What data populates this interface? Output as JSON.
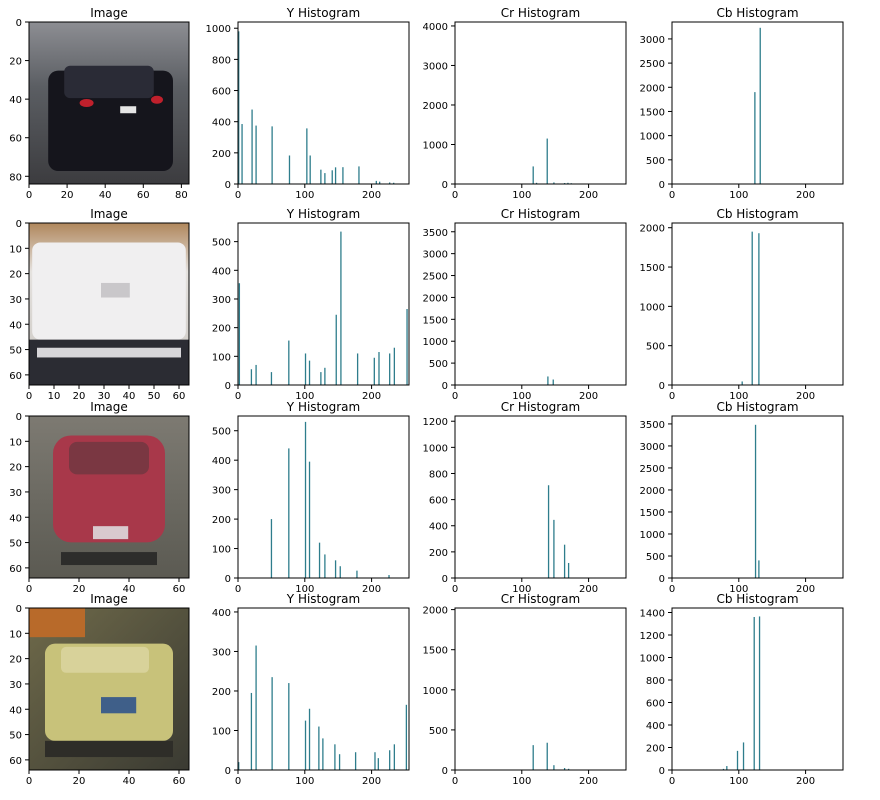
{
  "chart_data": [
    {
      "row": 0,
      "type": "image",
      "title": "Image",
      "xticks": [
        0,
        20,
        40,
        60,
        80
      ],
      "yticks": [
        0,
        20,
        40,
        60,
        80
      ],
      "ylim": [
        0,
        84
      ],
      "description": "dark car, rear view, on a road"
    },
    {
      "row": 0,
      "type": "bar",
      "title": "Y Histogram",
      "xlim": [
        0,
        256
      ],
      "xticks": [
        0,
        100,
        200
      ],
      "ylim": [
        0,
        1040
      ],
      "yticks": [
        0,
        200,
        400,
        600,
        800,
        1000
      ],
      "x": [
        1,
        6,
        21,
        27,
        51,
        77,
        103,
        108,
        124,
        130,
        141,
        146,
        157,
        181,
        207,
        212,
        227,
        233
      ],
      "values": [
        980,
        385,
        478,
        375,
        370,
        183,
        357,
        183,
        92,
        70,
        88,
        107,
        108,
        113,
        20,
        15,
        10,
        8
      ]
    },
    {
      "row": 0,
      "type": "bar",
      "title": "Cr Histogram",
      "xlim": [
        0,
        256
      ],
      "xticks": [
        0,
        100,
        200
      ],
      "ylim": [
        0,
        4100
      ],
      "yticks": [
        0,
        1000,
        2000,
        3000,
        4000
      ],
      "x": [
        117,
        122,
        138,
        148,
        164,
        169,
        174
      ],
      "values": [
        445,
        30,
        1150,
        40,
        25,
        30,
        20
      ]
    },
    {
      "row": 0,
      "type": "bar",
      "title": "Cb Histogram",
      "xlim": [
        0,
        256
      ],
      "xticks": [
        0,
        100,
        200
      ],
      "ylim": [
        0,
        3350
      ],
      "yticks": [
        0,
        500,
        1000,
        1500,
        2000,
        2500,
        3000
      ],
      "x": [
        124,
        132
      ],
      "values": [
        1900,
        3230
      ]
    },
    {
      "row": 1,
      "type": "image",
      "title": "Image",
      "xticks": [
        0,
        10,
        20,
        30,
        40,
        50,
        60
      ],
      "yticks": [
        0,
        10,
        20,
        30,
        40,
        50,
        60
      ],
      "ylim": [
        0,
        64
      ],
      "description": "white car, rear view"
    },
    {
      "row": 1,
      "type": "bar",
      "title": "Y Histogram",
      "xlim": [
        0,
        256
      ],
      "xticks": [
        0,
        100,
        200
      ],
      "ylim": [
        0,
        565
      ],
      "yticks": [
        0,
        100,
        200,
        300,
        400,
        500
      ],
      "x": [
        2,
        20,
        27,
        50,
        76,
        101,
        107,
        124,
        130,
        147,
        154,
        179,
        204,
        211,
        227,
        234,
        253
      ],
      "values": [
        355,
        55,
        70,
        45,
        155,
        110,
        85,
        45,
        60,
        245,
        535,
        110,
        95,
        115,
        110,
        130,
        265
      ]
    },
    {
      "row": 1,
      "type": "bar",
      "title": "Cr Histogram",
      "xlim": [
        0,
        256
      ],
      "xticks": [
        0,
        100,
        200
      ],
      "ylim": [
        0,
        3700
      ],
      "yticks": [
        0,
        500,
        1000,
        1500,
        2000,
        2500,
        3000,
        3500
      ],
      "x": [
        139,
        147
      ],
      "values": [
        195,
        125
      ]
    },
    {
      "row": 1,
      "type": "bar",
      "title": "Cb Histogram",
      "xlim": [
        0,
        256
      ],
      "xticks": [
        0,
        100,
        200
      ],
      "ylim": [
        0,
        2060
      ],
      "yticks": [
        0,
        500,
        1000,
        1500,
        2000
      ],
      "x": [
        105,
        120,
        130
      ],
      "values": [
        45,
        1950,
        1930
      ]
    },
    {
      "row": 2,
      "type": "image",
      "title": "Image",
      "xticks": [
        0,
        20,
        40,
        60
      ],
      "yticks": [
        0,
        10,
        20,
        30,
        40,
        50,
        60
      ],
      "ylim": [
        0,
        64
      ],
      "description": "blurred red car, rear view"
    },
    {
      "row": 2,
      "type": "bar",
      "title": "Y Histogram",
      "xlim": [
        0,
        256
      ],
      "xticks": [
        0,
        100,
        200
      ],
      "ylim": [
        0,
        550
      ],
      "yticks": [
        0,
        100,
        200,
        300,
        400,
        500
      ],
      "x": [
        50,
        76,
        101,
        107,
        122,
        130,
        146,
        153,
        178,
        226
      ],
      "values": [
        200,
        440,
        530,
        395,
        120,
        80,
        60,
        40,
        25,
        10
      ]
    },
    {
      "row": 2,
      "type": "bar",
      "title": "Cr Histogram",
      "xlim": [
        0,
        256
      ],
      "xticks": [
        0,
        100,
        200
      ],
      "ylim": [
        0,
        1240
      ],
      "yticks": [
        0,
        200,
        400,
        600,
        800,
        1000,
        1200
      ],
      "x": [
        140,
        148,
        164,
        170
      ],
      "values": [
        710,
        445,
        255,
        115
      ]
    },
    {
      "row": 2,
      "type": "bar",
      "title": "Cb Histogram",
      "xlim": [
        0,
        256
      ],
      "xticks": [
        0,
        100,
        200
      ],
      "ylim": [
        0,
        3680
      ],
      "yticks": [
        0,
        500,
        1000,
        1500,
        2000,
        2500,
        3000,
        3500
      ],
      "x": [
        125,
        130
      ],
      "values": [
        3480,
        400
      ]
    },
    {
      "row": 3,
      "type": "image",
      "title": "Image",
      "xticks": [
        0,
        20,
        40,
        60
      ],
      "yticks": [
        0,
        10,
        20,
        30,
        40,
        50,
        60
      ],
      "ylim": [
        0,
        64
      ],
      "description": "yellow taxi, rear three-quarter view"
    },
    {
      "row": 3,
      "type": "bar",
      "title": "Y Histogram",
      "xlim": [
        0,
        256
      ],
      "xticks": [
        0,
        100,
        200
      ],
      "ylim": [
        0,
        410
      ],
      "yticks": [
        0,
        100,
        200,
        300,
        400
      ],
      "x": [
        1,
        20,
        27,
        51,
        76,
        101,
        107,
        121,
        127,
        145,
        152,
        176,
        205,
        210,
        227,
        234,
        252
      ],
      "values": [
        20,
        195,
        315,
        235,
        220,
        125,
        155,
        110,
        80,
        65,
        40,
        45,
        45,
        30,
        50,
        65,
        165
      ]
    },
    {
      "row": 3,
      "type": "bar",
      "title": "Cr Histogram",
      "xlim": [
        0,
        256
      ],
      "xticks": [
        0,
        100,
        200
      ],
      "ylim": [
        0,
        2020
      ],
      "yticks": [
        0,
        500,
        1000,
        1500,
        2000
      ],
      "x": [
        117,
        138,
        148,
        164,
        170
      ],
      "values": [
        310,
        340,
        60,
        25,
        15
      ]
    },
    {
      "row": 3,
      "type": "bar",
      "title": "Cb Histogram",
      "xlim": [
        0,
        256
      ],
      "xticks": [
        0,
        100,
        200
      ],
      "ylim": [
        0,
        1440
      ],
      "yticks": [
        0,
        200,
        400,
        600,
        800,
        1000,
        1200,
        1400
      ],
      "x": [
        77,
        82,
        98,
        107,
        123,
        131
      ],
      "values": [
        10,
        35,
        170,
        245,
        1360,
        1365
      ]
    }
  ],
  "colors": {
    "bar": "#2e7d8c",
    "axis": "#000000",
    "text": "#000000"
  }
}
